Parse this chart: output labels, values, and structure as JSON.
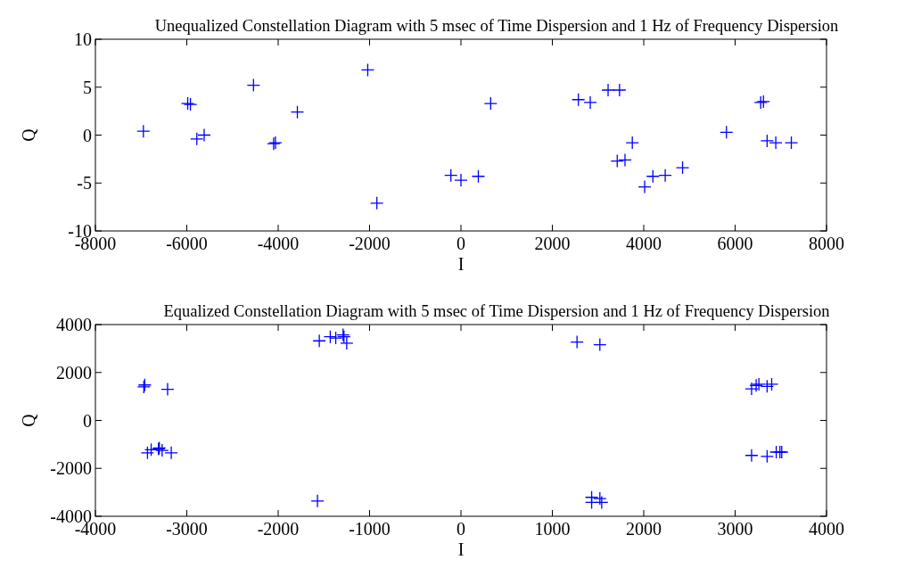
{
  "chart_data": [
    {
      "type": "scatter",
      "title": "Unequalized Constellation Diagram with 5 msec of Time Dispersion and 1 Hz of Frequency Dispersion",
      "xlabel": "I",
      "ylabel": "Q",
      "marker": "cross",
      "xlim": [
        -8000,
        8000
      ],
      "xticks": [
        -8000,
        -6000,
        -4000,
        -2000,
        0,
        2000,
        4000,
        6000,
        8000
      ],
      "ylim": [
        -10,
        10
      ],
      "yticks": [
        -10,
        -5,
        0,
        5,
        10
      ],
      "series": [
        {
          "color": "#0000ff",
          "x": [
            -6950,
            -5980,
            -5920,
            -5780,
            -5620,
            -4540,
            -4100,
            -4060,
            -3580,
            -2040,
            -1840,
            -220,
            0,
            380,
            650,
            2570,
            2830,
            3220,
            3470,
            3420,
            3590,
            3750,
            4020,
            4200,
            4470,
            4850,
            5810,
            6560,
            6620,
            6700,
            6890,
            7230
          ],
          "values": [
            0.4,
            3.3,
            3.2,
            -0.4,
            0,
            5.2,
            -0.9,
            -0.8,
            2.4,
            6.8,
            -7.1,
            -4.2,
            -4.7,
            -4.3,
            3.3,
            3.7,
            3.4,
            4.7,
            4.7,
            -2.7,
            -2.6,
            -0.8,
            -5.4,
            -4.3,
            -4.2,
            -3.4,
            0.3,
            3.4,
            3.5,
            -0.6,
            -0.8,
            -0.8
          ]
        }
      ]
    },
    {
      "type": "scatter",
      "title": "Equalized Constellation Diagram with 5 msec of Time Dispersion and 1 Hz of Frequency Dispersion",
      "xlabel": "I",
      "ylabel": "Q",
      "marker": "cross",
      "xlim": [
        -4000,
        4000
      ],
      "xticks": [
        -4000,
        -3000,
        -2000,
        -1000,
        0,
        1000,
        2000,
        3000,
        4000
      ],
      "ylim": [
        -4000,
        4000
      ],
      "yticks": [
        -4000,
        -2000,
        0,
        2000,
        4000
      ],
      "series": [
        {
          "color": "#0000ff",
          "x": [
            -3470,
            -3460,
            -3210,
            -3430,
            -3390,
            -3310,
            -3300,
            -3270,
            -3170,
            -1550,
            -1430,
            -1370,
            -1290,
            -1280,
            -1250,
            -1570,
            1270,
            1520,
            1430,
            1430,
            1520,
            1540,
            3180,
            3230,
            3260,
            3350,
            3400,
            3180,
            3350,
            3450,
            3490,
            3510
          ],
          "values": [
            1400,
            1480,
            1300,
            -1350,
            -1220,
            -1190,
            -1150,
            -1250,
            -1350,
            3320,
            3490,
            3440,
            3570,
            3490,
            3220,
            -3360,
            3270,
            3160,
            -3210,
            -3420,
            -3260,
            -3420,
            1320,
            1460,
            1510,
            1420,
            1510,
            -1460,
            -1500,
            -1320,
            -1320,
            -1320
          ]
        }
      ]
    }
  ]
}
